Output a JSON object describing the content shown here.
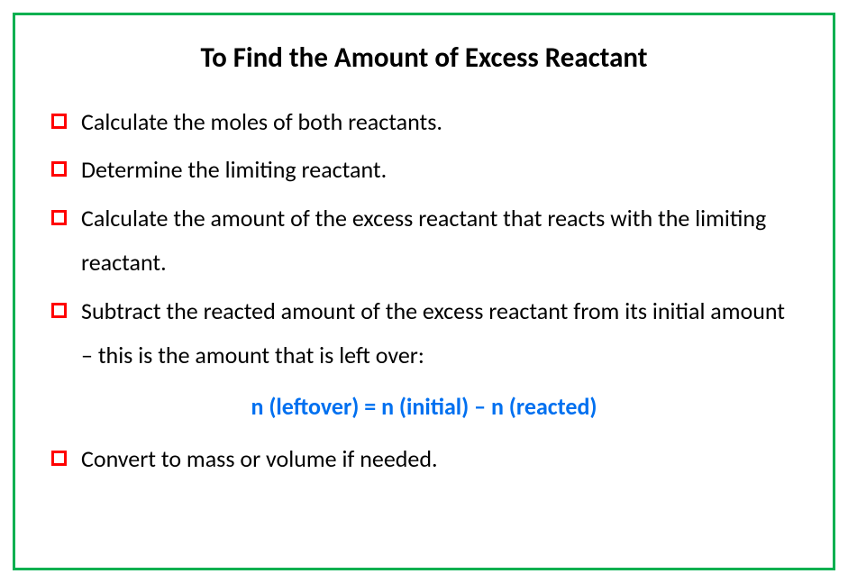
{
  "title": "To Find the Amount of Excess Reactant",
  "border_color": "#00b050",
  "bullet_color": "#ff0000",
  "formula_color": "#0070f0",
  "text_color": "#000000",
  "title_fontsize": 31,
  "body_fontsize": 26,
  "line_height": 1.9,
  "bullets": [
    "Calculate the moles of both reactants.",
    "Determine the limiting reactant.",
    "Calculate the amount of the excess reactant that reacts with the limiting reactant.",
    "Subtract the reacted amount of the excess reactant from its initial amount – this is the amount that is left over:",
    "Convert to mass or volume if needed."
  ],
  "formula": "n (leftover) = n (initial) – n (reacted)"
}
